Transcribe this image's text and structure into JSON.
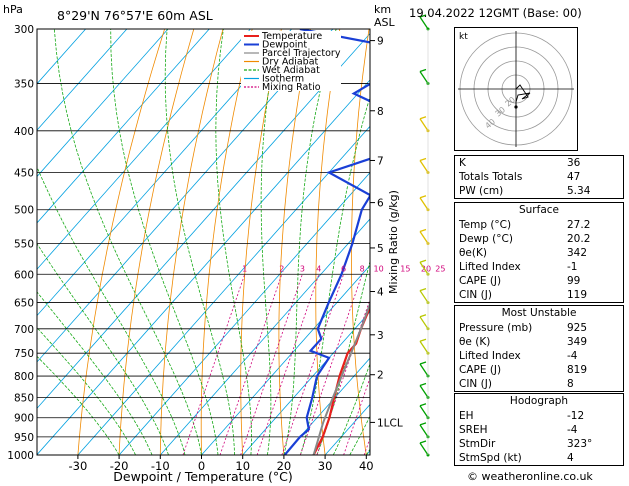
{
  "header": {
    "pressure_unit": "hPa",
    "location": "8°29'N  76°57'E  60m  ASL",
    "km_label": "km",
    "asl_label": "ASL",
    "datetime": "19.04.2022  12GMT  (Base: 00)"
  },
  "legend": [
    {
      "label": "Temperature",
      "color": "#e8201c"
    },
    {
      "label": "Dewpoint",
      "color": "#1a3fd6"
    },
    {
      "label": "Parcel Trajectory",
      "color": "#888888"
    },
    {
      "label": "Dry Adiabat",
      "color": "#f08a00"
    },
    {
      "label": "Wet Adiabat",
      "color": "#15a915"
    },
    {
      "label": "Isotherm",
      "color": "#00a0e0"
    },
    {
      "label": "Mixing Ratio",
      "color": "#d0007a"
    }
  ],
  "chart_data": {
    "type": "line",
    "xlabel": "Dewpoint / Temperature (°C)",
    "ylabel_right": "Mixing Ratio (g/kg)",
    "pressure_levels": [
      300,
      350,
      400,
      450,
      500,
      550,
      600,
      650,
      700,
      750,
      800,
      850,
      900,
      950,
      1000
    ],
    "temp_ticks": [
      -30,
      -20,
      -10,
      0,
      10,
      20,
      30,
      40
    ],
    "km_ticks": [
      {
        "label": "9",
        "p": 310
      },
      {
        "label": "8",
        "p": 378
      },
      {
        "label": "7",
        "p": 435
      },
      {
        "label": "6",
        "p": 490
      },
      {
        "label": "5",
        "p": 557
      },
      {
        "label": "4",
        "p": 630
      },
      {
        "label": "3",
        "p": 712
      },
      {
        "label": "2",
        "p": 797
      },
      {
        "label": "1LCL",
        "p": 912
      }
    ],
    "mixing_ratio_labels": [
      "1",
      "2",
      "3",
      "4",
      "6",
      "8",
      "10",
      "15",
      "20",
      "25"
    ],
    "series": [
      {
        "name": "Temperature",
        "color": "#e8201c",
        "points": [
          [
            1000,
            27.2
          ],
          [
            950,
            25.5
          ],
          [
            900,
            23
          ],
          [
            850,
            19.8
          ],
          [
            800,
            16.5
          ],
          [
            750,
            13.5
          ],
          [
            730,
            13.5
          ],
          [
            700,
            11.5
          ],
          [
            650,
            8.5
          ],
          [
            600,
            4
          ],
          [
            550,
            -1
          ],
          [
            500,
            -6
          ],
          [
            450,
            -11.5
          ],
          [
            400,
            -19
          ],
          [
            350,
            -27
          ],
          [
            300,
            -35
          ]
        ]
      },
      {
        "name": "Dewpoint",
        "color": "#1a3fd6",
        "points": [
          [
            1000,
            20.2
          ],
          [
            950,
            20
          ],
          [
            930,
            20.5
          ],
          [
            900,
            17.5
          ],
          [
            850,
            14.5
          ],
          [
            800,
            11
          ],
          [
            760,
            10
          ],
          [
            745,
            4
          ],
          [
            720,
            4
          ],
          [
            700,
            1
          ],
          [
            650,
            -2
          ],
          [
            600,
            -5
          ],
          [
            550,
            -9
          ],
          [
            500,
            -14
          ],
          [
            480,
            -15
          ],
          [
            450,
            -30
          ],
          [
            420,
            -17.5
          ],
          [
            400,
            -22
          ],
          [
            380,
            -27
          ],
          [
            360,
            -41
          ],
          [
            340,
            -37
          ],
          [
            320,
            -34
          ],
          [
            300,
            -68
          ]
        ]
      },
      {
        "name": "Parcel Trajectory",
        "color": "#888888",
        "points": [
          [
            1000,
            27.2
          ],
          [
            912,
            22.5
          ],
          [
            850,
            19.5
          ],
          [
            800,
            17
          ],
          [
            700,
            11.5
          ],
          [
            600,
            4.5
          ],
          [
            500,
            -5
          ],
          [
            400,
            -17
          ],
          [
            300,
            -34
          ]
        ]
      }
    ],
    "wind_barbs": [
      {
        "p": 1000,
        "color": "#00a000"
      },
      {
        "p": 950,
        "color": "#00a000"
      },
      {
        "p": 900,
        "color": "#00a000"
      },
      {
        "p": 850,
        "color": "#00a000"
      },
      {
        "p": 800,
        "color": "#00a000"
      },
      {
        "p": 750,
        "color": "#b8c800"
      },
      {
        "p": 700,
        "color": "#b8c800"
      },
      {
        "p": 650,
        "color": "#b8c800"
      },
      {
        "p": 600,
        "color": "#b8c800"
      },
      {
        "p": 550,
        "color": "#e0c000"
      },
      {
        "p": 500,
        "color": "#e0c000"
      },
      {
        "p": 450,
        "color": "#e0c000"
      },
      {
        "p": 400,
        "color": "#e0c000"
      },
      {
        "p": 350,
        "color": "#00a000"
      },
      {
        "p": 300,
        "color": "#00a000"
      }
    ]
  },
  "hodograph": {
    "label": "kt",
    "ring_labels": [
      "40",
      "30",
      "20"
    ]
  },
  "indices": [
    {
      "label": "K",
      "value": "36"
    },
    {
      "label": "Totals Totals",
      "value": "47"
    },
    {
      "label": "PW (cm)",
      "value": "5.34"
    }
  ],
  "surface": {
    "title": "Surface",
    "rows": [
      {
        "label": "Temp (°C)",
        "value": "27.2"
      },
      {
        "label": "Dewp (°C)",
        "value": "20.2"
      },
      {
        "label": "θe(K)",
        "value": "342"
      },
      {
        "label": "Lifted Index",
        "value": "-1"
      },
      {
        "label": "CAPE (J)",
        "value": "99"
      },
      {
        "label": "CIN (J)",
        "value": "119"
      }
    ]
  },
  "most_unstable": {
    "title": "Most Unstable",
    "rows": [
      {
        "label": "Pressure (mb)",
        "value": "925"
      },
      {
        "label": "θe (K)",
        "value": "349"
      },
      {
        "label": "Lifted Index",
        "value": "-4"
      },
      {
        "label": "CAPE (J)",
        "value": "819"
      },
      {
        "label": "CIN (J)",
        "value": "8"
      }
    ]
  },
  "hodograph_table": {
    "title": "Hodograph",
    "rows": [
      {
        "label": "EH",
        "value": "-12"
      },
      {
        "label": "SREH",
        "value": "-4"
      },
      {
        "label": "StmDir",
        "value": "323°"
      },
      {
        "label": "StmSpd (kt)",
        "value": "4"
      }
    ]
  },
  "credit": "© weatheronline.co.uk"
}
